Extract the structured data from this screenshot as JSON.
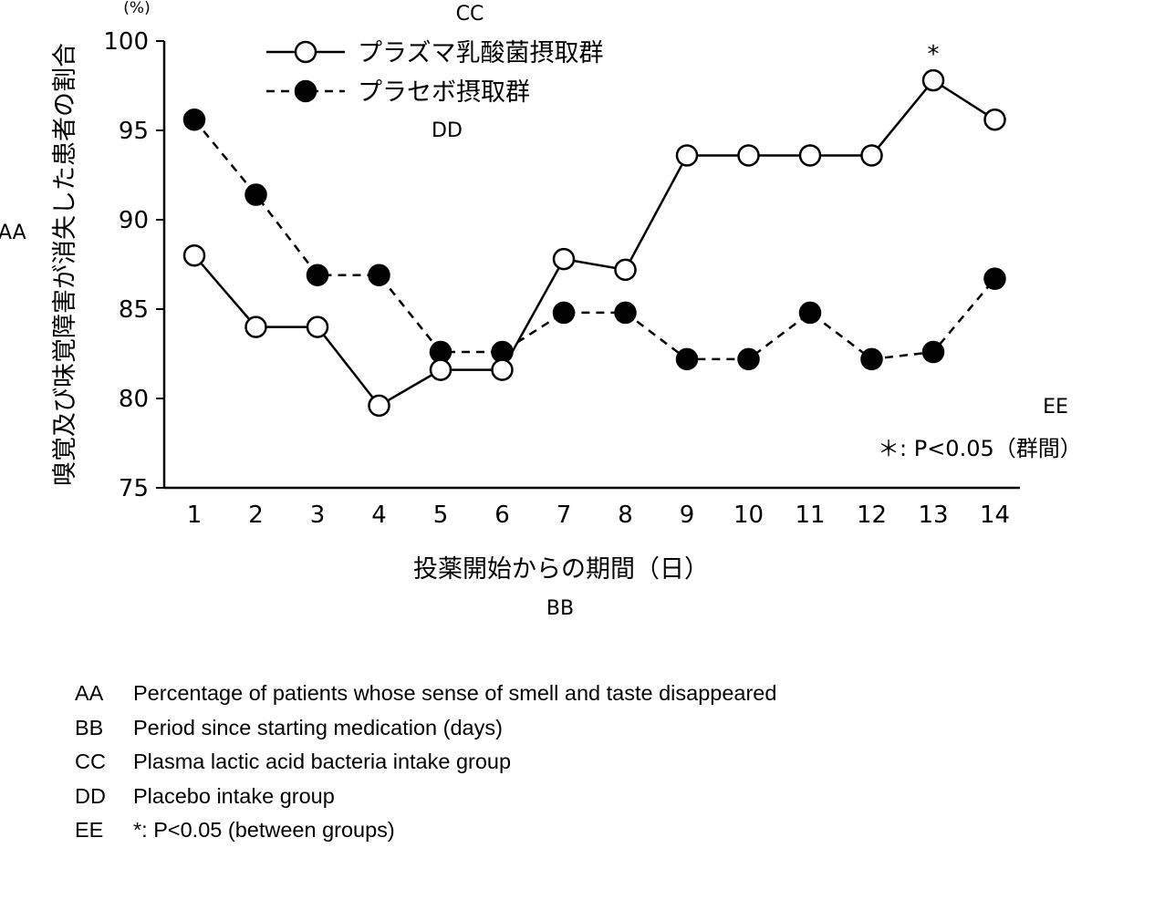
{
  "chart_data": {
    "type": "line",
    "ylabel": "嗅覚及び味覚障害が消失した患者の割合",
    "y_unit": "(%)",
    "xlabel": "投薬開始からの期間（日）",
    "categories": [
      1,
      2,
      3,
      4,
      5,
      6,
      7,
      8,
      9,
      10,
      11,
      12,
      13,
      14
    ],
    "ylim": [
      75,
      100
    ],
    "yticks": [
      75,
      80,
      85,
      90,
      95,
      100
    ],
    "grid": false,
    "legend_position": "top-left",
    "series": [
      {
        "name": "プラズマ乳酸菌摂取群",
        "style": "solid line, open circle markers",
        "values": [
          88.0,
          84.0,
          84.0,
          79.6,
          81.6,
          81.6,
          87.8,
          87.2,
          93.6,
          93.6,
          93.6,
          93.6,
          97.8,
          95.6
        ]
      },
      {
        "name": "プラセボ摂取群",
        "style": "dashed line, filled circle markers",
        "values": [
          95.6,
          91.4,
          86.9,
          86.9,
          82.6,
          82.6,
          84.8,
          84.8,
          82.2,
          82.2,
          84.8,
          82.2,
          82.6,
          86.7
        ]
      }
    ],
    "annotations": [
      {
        "text": "*",
        "x": 13
      }
    ],
    "note": "＊: P<0.05（群間）"
  },
  "labels": {
    "aa": "AA",
    "bb": "BB",
    "cc": "CC",
    "dd": "DD",
    "ee": "EE"
  },
  "key": [
    {
      "code": "AA",
      "text": "Percentage of patients whose sense of smell and taste disappeared"
    },
    {
      "code": "BB",
      "text": "Period since starting medication (days)"
    },
    {
      "code": "CC",
      "text": "Plasma lactic acid bacteria intake group"
    },
    {
      "code": "DD",
      "text": "Placebo intake group"
    },
    {
      "code": "EE",
      "text": "*: P<0.05 (between groups)"
    }
  ],
  "colors": {
    "line": "#000000",
    "background": "#ffffff"
  }
}
